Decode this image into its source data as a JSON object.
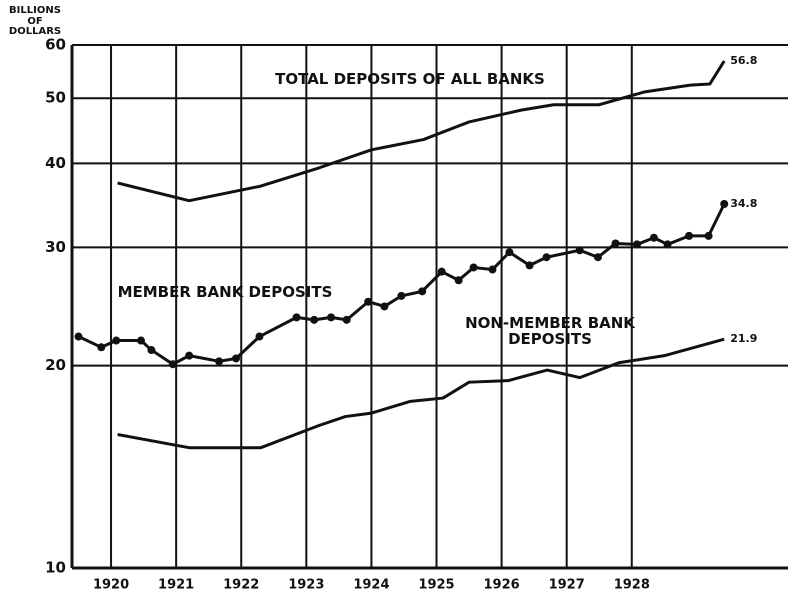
{
  "chart_data": {
    "type": "line",
    "y_label": "BILLIONS OF DOLLARS",
    "log_scale": true,
    "grid": true,
    "xlim": [
      1919.4,
      1930.4
    ],
    "xticks": [
      1920,
      1921,
      1922,
      1923,
      1924,
      1925,
      1926,
      1927,
      1928
    ],
    "ylim": [
      10,
      60
    ],
    "yticks": [
      10,
      20,
      30,
      40,
      50,
      60
    ],
    "series": [
      {
        "name": "TOTAL DEPOSITS OF ALL BANKS",
        "color": "#111111",
        "markers": false,
        "x": [
          1920.1,
          1921.2,
          1922.3,
          1923.2,
          1924.0,
          1924.8,
          1925.5,
          1926.3,
          1926.8,
          1927.5,
          1928.2,
          1928.9,
          1929.2,
          1929.42
        ],
        "values": [
          37.4,
          35.2,
          37.0,
          39.4,
          41.9,
          43.4,
          46.1,
          48.0,
          48.9,
          48.9,
          51.1,
          52.3,
          52.5,
          56.8
        ]
      },
      {
        "name": "MEMBER BANK DEPOSITS",
        "color": "#111111",
        "markers": true,
        "x": [
          1919.5,
          1919.85,
          1920.08,
          1920.46,
          1920.62,
          1920.95,
          1921.2,
          1921.66,
          1921.92,
          1922.28,
          1922.85,
          1923.12,
          1923.38,
          1923.62,
          1923.95,
          1924.2,
          1924.46,
          1924.78,
          1925.08,
          1925.34,
          1925.57,
          1925.86,
          1926.12,
          1926.43,
          1926.69,
          1927.2,
          1927.48,
          1927.75,
          1928.08,
          1928.34,
          1928.55,
          1928.88,
          1929.18,
          1929.42
        ],
        "values": [
          22.1,
          21.3,
          21.8,
          21.8,
          21.1,
          20.1,
          20.7,
          20.3,
          20.5,
          22.1,
          23.6,
          23.4,
          23.6,
          23.4,
          24.9,
          24.5,
          25.4,
          25.8,
          27.6,
          26.8,
          28.0,
          27.8,
          29.5,
          28.2,
          29.0,
          29.7,
          29.0,
          30.4,
          30.3,
          31.0,
          30.3,
          31.2,
          31.2,
          34.8
        ]
      },
      {
        "name": "NON-MEMBER BANK DEPOSITS",
        "color": "#111111",
        "markers": false,
        "x": [
          1920.1,
          1921.2,
          1922.3,
          1923.2,
          1923.6,
          1924.0,
          1924.6,
          1925.1,
          1925.5,
          1926.1,
          1926.7,
          1927.2,
          1927.8,
          1928.5,
          1929.42
        ],
        "values": [
          15.8,
          15.1,
          15.1,
          16.3,
          16.8,
          17.0,
          17.7,
          17.9,
          18.9,
          19.0,
          19.7,
          19.2,
          20.2,
          20.7,
          21.9
        ]
      }
    ]
  }
}
